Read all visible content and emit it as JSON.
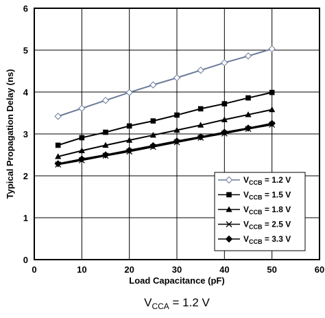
{
  "chart_data": {
    "type": "line",
    "xlabel": "Load Capacitance (pF)",
    "ylabel": "Typical Propagation Delay (ns)",
    "xlim": [
      0,
      60
    ],
    "ylim": [
      0,
      6
    ],
    "xticks": [
      0,
      10,
      20,
      30,
      40,
      50,
      60
    ],
    "yticks": [
      0,
      1,
      2,
      3,
      4,
      5,
      6
    ],
    "grid": true,
    "legend_position": "bottom-right",
    "x": [
      5,
      10,
      15,
      20,
      25,
      30,
      35,
      40,
      45,
      50
    ],
    "series": [
      {
        "name": "V_CCB = 1.2 V",
        "marker": "diamond-open",
        "color": "#6a7a99",
        "values": [
          3.42,
          3.61,
          3.8,
          3.99,
          4.17,
          4.34,
          4.52,
          4.7,
          4.86,
          5.03
        ]
      },
      {
        "name": "V_CCB = 1.5 V",
        "marker": "square",
        "color": "#000000",
        "values": [
          2.73,
          2.91,
          3.04,
          3.19,
          3.31,
          3.45,
          3.6,
          3.72,
          3.86,
          3.99
        ]
      },
      {
        "name": "V_CCB = 1.8 V",
        "marker": "triangle",
        "color": "#000000",
        "values": [
          2.46,
          2.6,
          2.73,
          2.85,
          2.97,
          3.09,
          3.21,
          3.34,
          3.46,
          3.58
        ]
      },
      {
        "name": "V_CCB = 2.5 V",
        "marker": "x",
        "color": "#000000",
        "values": [
          2.27,
          2.37,
          2.48,
          2.58,
          2.69,
          2.8,
          2.91,
          3.01,
          3.12,
          3.22
        ]
      },
      {
        "name": "V_CCB = 3.3 V",
        "marker": "diamond",
        "color": "#000000",
        "values": [
          2.29,
          2.4,
          2.5,
          2.61,
          2.72,
          2.83,
          2.93,
          3.04,
          3.14,
          3.25
        ]
      }
    ],
    "legend": [
      {
        "main": "V",
        "sub": "CCB",
        "rest": " = 1.2 V"
      },
      {
        "main": "V",
        "sub": "CCB",
        "rest": " = 1.5 V"
      },
      {
        "main": "V",
        "sub": "CCB",
        "rest": " = 1.8 V"
      },
      {
        "main": "V",
        "sub": "CCB",
        "rest": " = 2.5 V"
      },
      {
        "main": "V",
        "sub": "CCB",
        "rest": " = 3.3 V"
      }
    ],
    "caption": {
      "main": "V",
      "sub": "CCA",
      "rest": " = 1.2 V"
    }
  }
}
